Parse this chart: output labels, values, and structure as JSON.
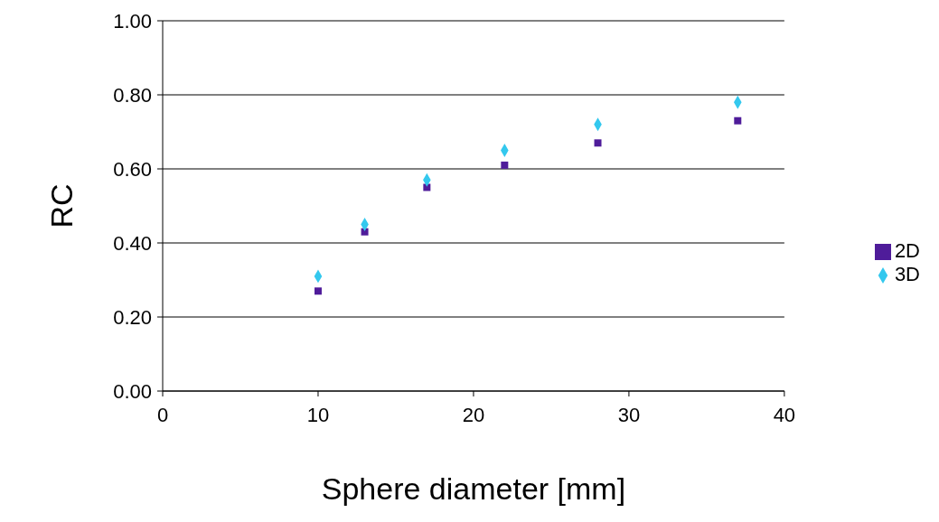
{
  "chart_data": {
    "type": "scatter",
    "xlabel": "Sphere diameter [mm]",
    "ylabel": "RC",
    "xlim": [
      0,
      40
    ],
    "xticks": [
      0,
      10,
      20,
      30,
      40
    ],
    "ylim": [
      0,
      1
    ],
    "yticks": [
      {
        "value": 0,
        "label": "0.00"
      },
      {
        "value": 0.2,
        "label": "0.20"
      },
      {
        "value": 0.4,
        "label": "0.40"
      },
      {
        "value": 0.6,
        "label": "0.60"
      },
      {
        "value": 0.8,
        "label": "0.80"
      },
      {
        "value": 1,
        "label": "1.00"
      }
    ],
    "grid": "y",
    "legend": "right",
    "x": [
      10,
      13,
      17,
      22,
      28,
      37
    ],
    "series": [
      {
        "name": "2D",
        "color": "#4f1c9a",
        "marker": "square",
        "values": [
          0.27,
          0.43,
          0.55,
          0.61,
          0.67,
          0.73
        ]
      },
      {
        "name": "3D",
        "color": "#33c8ee",
        "marker": "diamond",
        "values": [
          0.31,
          0.45,
          0.57,
          0.65,
          0.72,
          0.78
        ]
      }
    ]
  }
}
